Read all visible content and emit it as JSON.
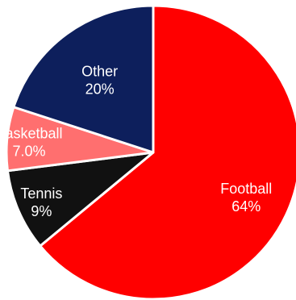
{
  "chart_data": {
    "type": "pie",
    "slices": [
      {
        "label": "Football",
        "value_text": "64%",
        "value": 64,
        "color": "#ff0000"
      },
      {
        "label": "Tennis",
        "value_text": "9%",
        "value": 9,
        "color": "#111111"
      },
      {
        "label": "Basketball",
        "value_text": "7.0%",
        "value": 7,
        "color": "#ff6f6f"
      },
      {
        "label": "Other",
        "value_text": "20%",
        "value": 20,
        "color": "#0d1f5c"
      }
    ],
    "start": "top",
    "direction": "clockwise",
    "slice_border_color": "#ffffff"
  }
}
